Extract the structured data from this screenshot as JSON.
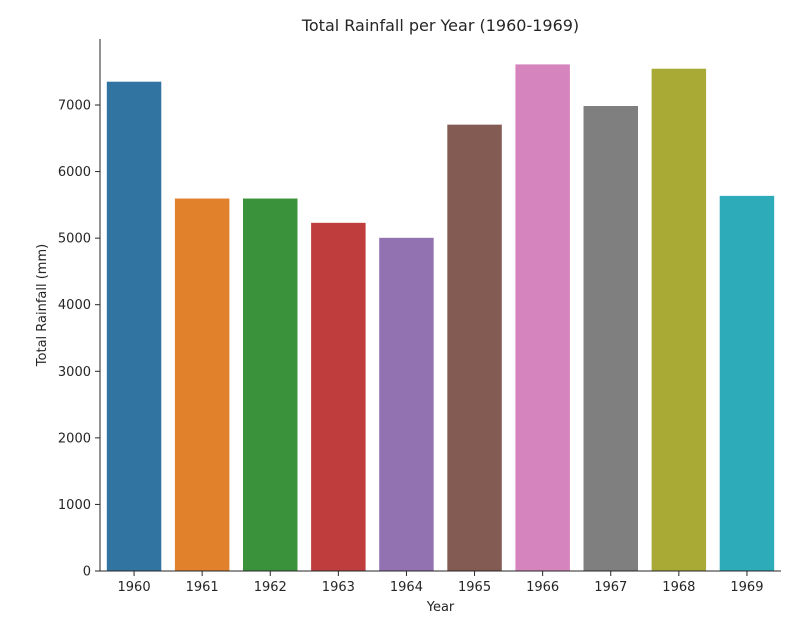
{
  "chart_data": {
    "type": "bar",
    "title": "Total Rainfall per Year (1960-1969)",
    "xlabel": "Year",
    "ylabel": "Total Rainfall (mm)",
    "categories": [
      "1960",
      "1961",
      "1962",
      "1963",
      "1964",
      "1965",
      "1966",
      "1967",
      "1968",
      "1969"
    ],
    "values": [
      7350,
      5595,
      5595,
      5230,
      5005,
      6705,
      7610,
      6985,
      7545,
      5635
    ],
    "colors": [
      "#3274a1",
      "#e1812c",
      "#3a923a",
      "#c03d3e",
      "#9372b2",
      "#845b53",
      "#d684bd",
      "#7f7f7f",
      "#a9aa35",
      "#2eabb8"
    ],
    "ylim": [
      0,
      8000
    ],
    "yticks": [
      0,
      1000,
      2000,
      3000,
      4000,
      5000,
      6000,
      7000
    ],
    "grid": false,
    "legend": "none"
  }
}
